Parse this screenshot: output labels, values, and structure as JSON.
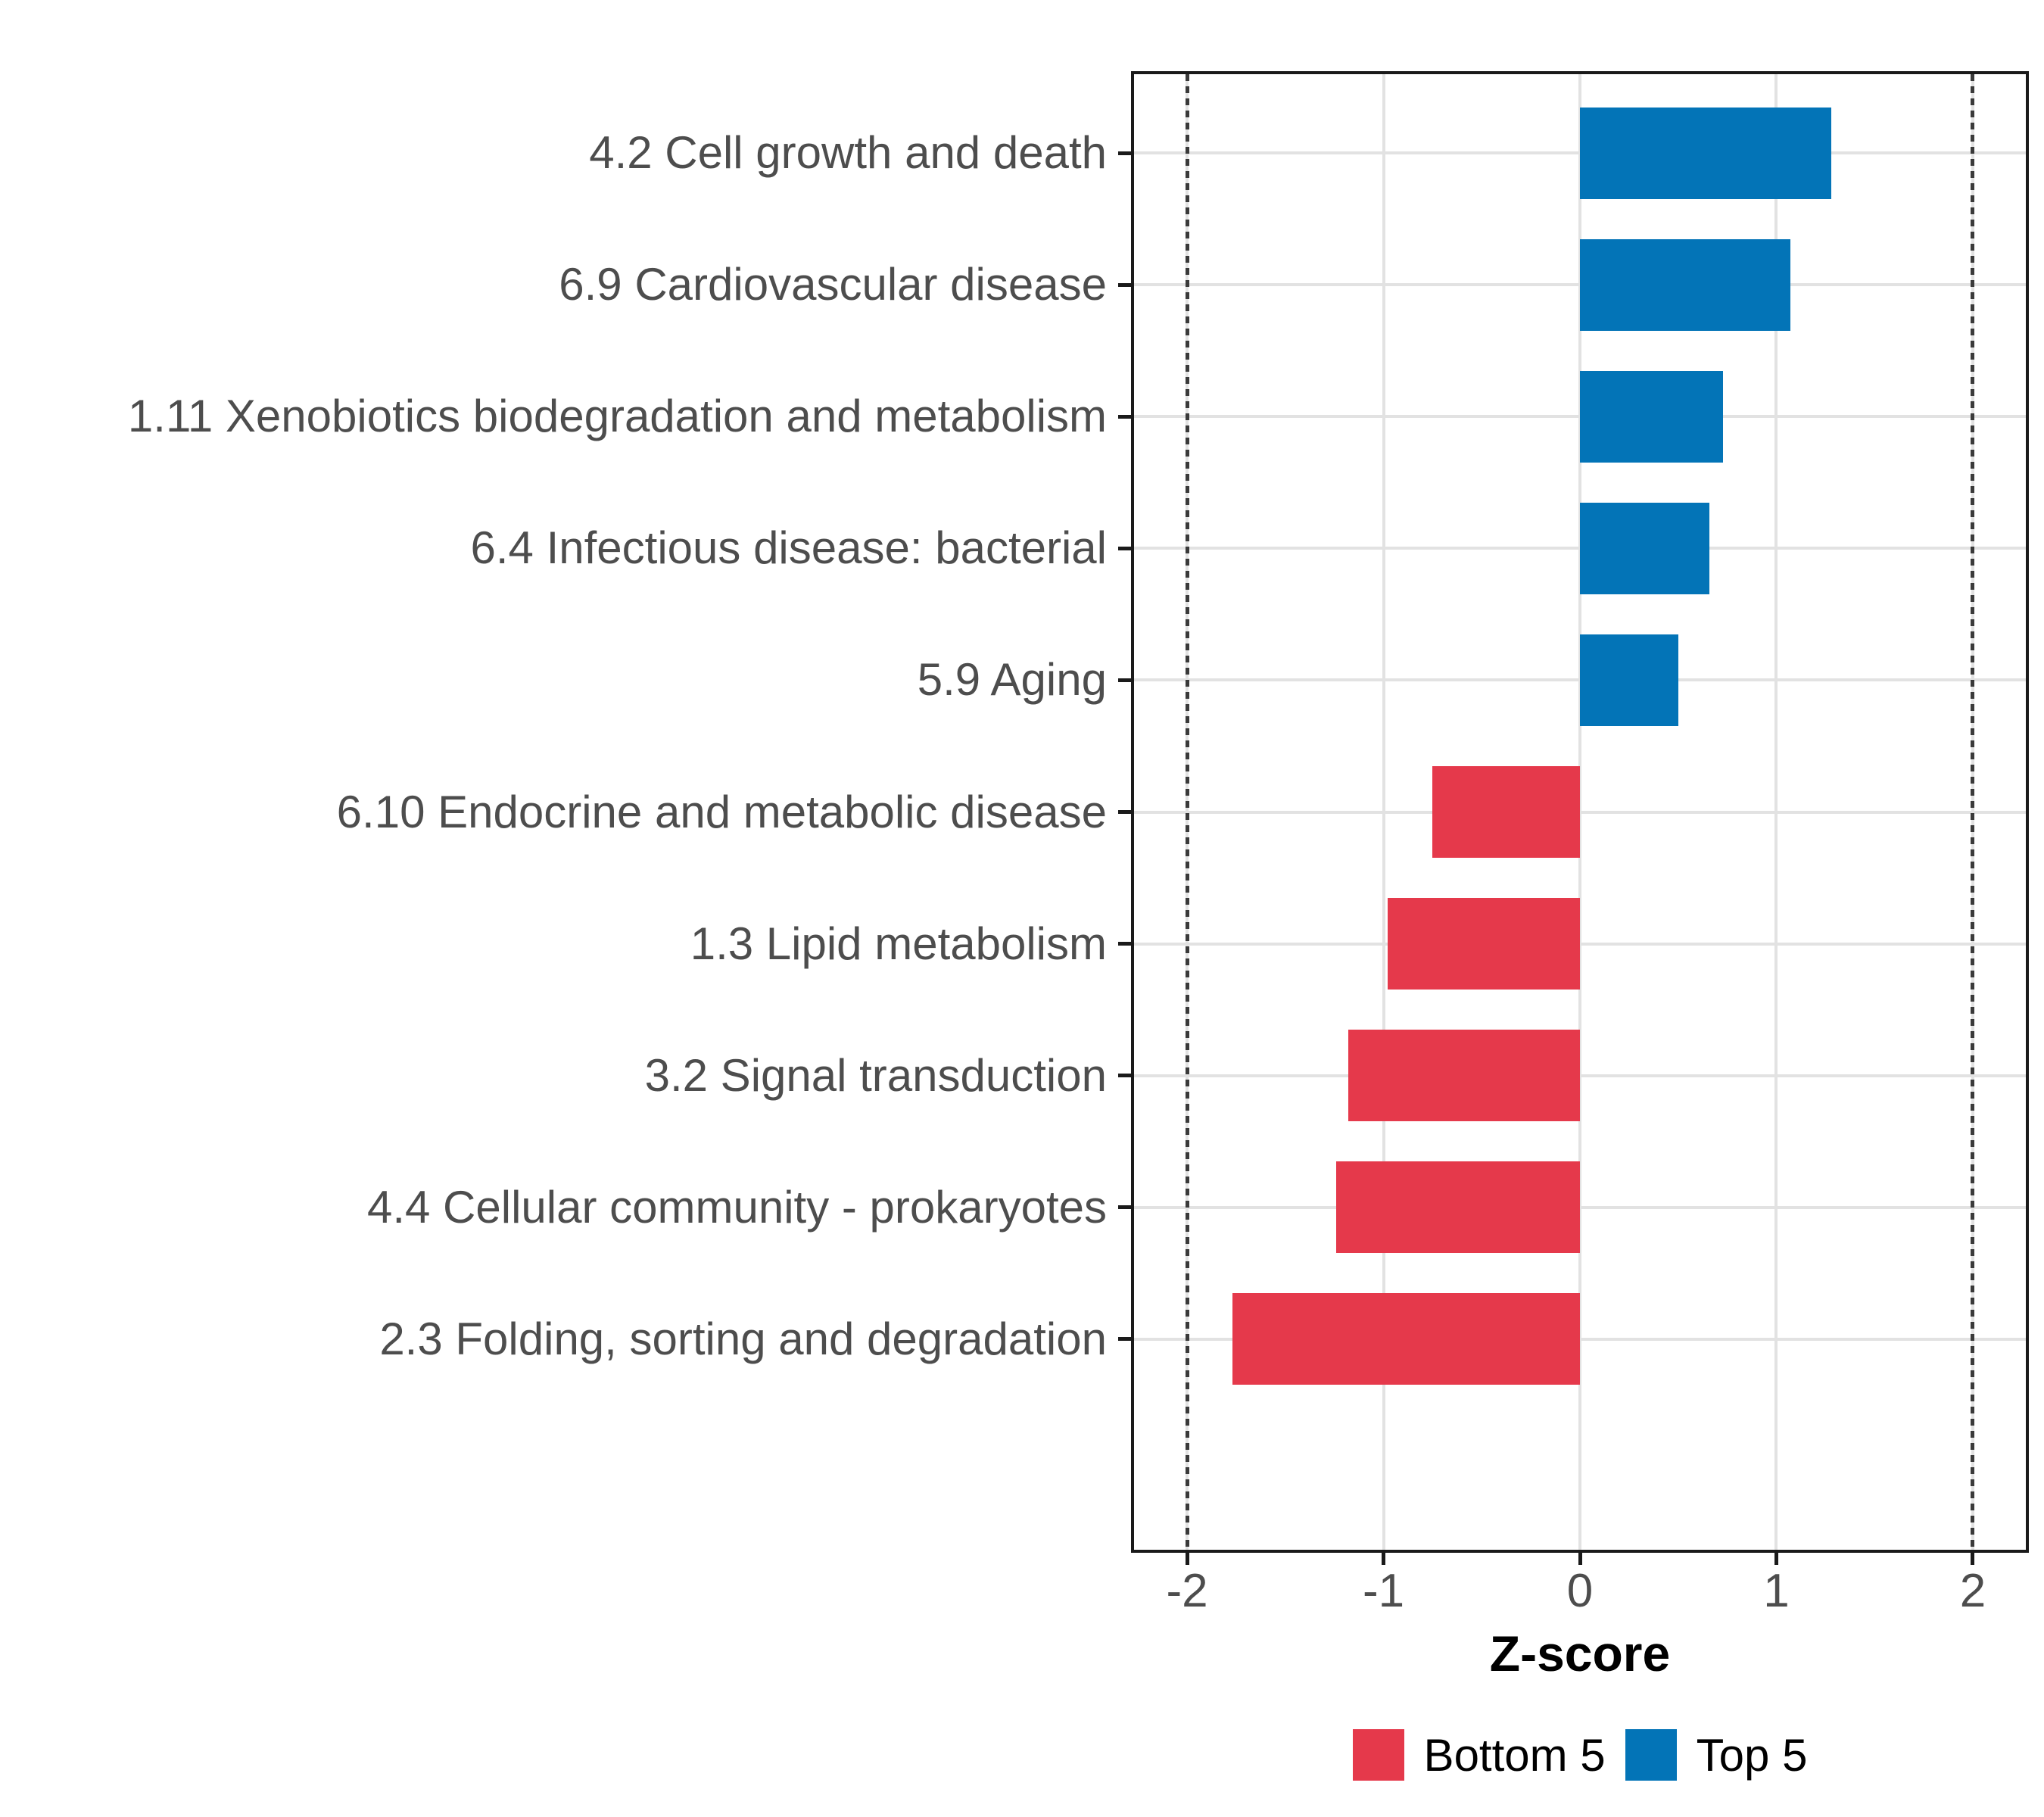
{
  "chart_data": {
    "type": "bar",
    "orientation": "horizontal",
    "title": "",
    "xlabel": "Z-score",
    "ylabel": "",
    "categories": [
      "4.2 Cell growth and death",
      "6.9 Cardiovascular disease",
      "1.11 Xenobiotics biodegradation and metabolism",
      "6.4 Infectious disease: bacterial",
      "5.9 Aging",
      "6.10 Endocrine and metabolic disease",
      "1.3 Lipid metabolism",
      "3.2 Signal transduction",
      "4.4 Cellular community - prokaryotes",
      "2.3 Folding, sorting and degradation"
    ],
    "values": [
      1.28,
      1.07,
      0.73,
      0.66,
      0.5,
      -0.75,
      -0.98,
      -1.18,
      -1.24,
      -1.77
    ],
    "groups": [
      "Top 5",
      "Top 5",
      "Top 5",
      "Top 5",
      "Top 5",
      "Bottom 5",
      "Bottom 5",
      "Bottom 5",
      "Bottom 5",
      "Bottom 5"
    ],
    "bar_colors": {
      "Top 5": "#0374b7",
      "Bottom 5": "#e5394b"
    },
    "xlim": [
      -2.27,
      2.27
    ],
    "x_ticks": [
      -2,
      -1,
      0,
      1,
      2
    ],
    "x_tick_labels": [
      "-2",
      "-1",
      "0",
      "1",
      "2"
    ],
    "reference_lines": [
      -2,
      2
    ],
    "grid": "major-both",
    "legend": {
      "position": "bottom",
      "items": [
        {
          "label": "Bottom 5",
          "color": "#e5394b"
        },
        {
          "label": "Top 5",
          "color": "#0374b7"
        }
      ]
    }
  },
  "style": {
    "grid_color": "#e2e2e2",
    "panel_border_color": "#1a1a1a",
    "axis_text_color": "#4d4d4d",
    "tick_color": "#1a1a1a",
    "reference_line_color": "#3a3a3a",
    "background": "#ffffff"
  }
}
